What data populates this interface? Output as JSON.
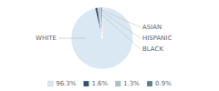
{
  "chart_data": {
    "type": "pie",
    "categories": [
      "WHITE",
      "BLACK",
      "HISPANIC",
      "ASIAN"
    ],
    "values": [
      96.3,
      1.6,
      1.3,
      0.9
    ],
    "value_labels": [
      "96.3%",
      "1.6%",
      "1.3%",
      "0.9%"
    ],
    "colors": [
      "#d9e8f2",
      "#2e4f6e",
      "#a8bfcf",
      "#5a7a92"
    ],
    "legend": "bottom"
  }
}
